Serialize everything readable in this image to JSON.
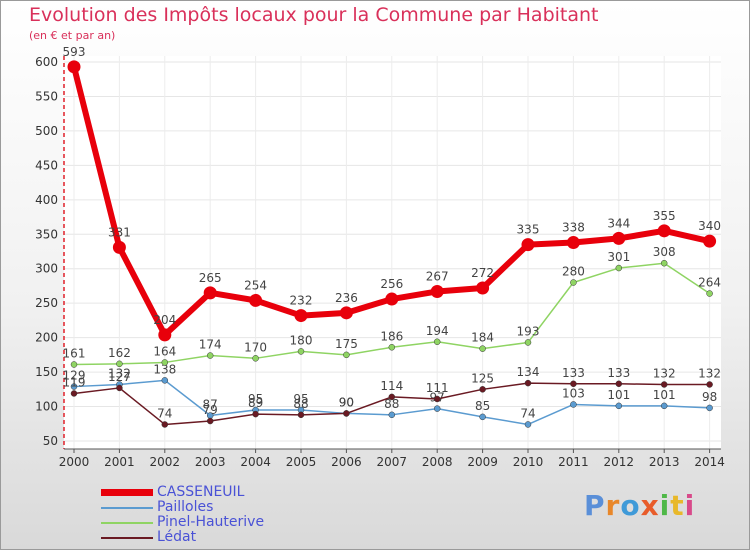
{
  "chart_data": {
    "type": "line",
    "title": "Evolution des Impôts locaux pour la Commune par Habitant",
    "subtitle": "(en € et par an)",
    "xlabel": "",
    "ylabel": "",
    "ylim": [
      50,
      600
    ],
    "yticks": [
      50,
      100,
      150,
      200,
      250,
      300,
      350,
      400,
      450,
      500,
      550,
      600
    ],
    "categories": [
      "2000",
      "2001",
      "2002",
      "2003",
      "2004",
      "2005",
      "2006",
      "2007",
      "2008",
      "2009",
      "2010",
      "2011",
      "2012",
      "2013",
      "2014"
    ],
    "series": [
      {
        "name": "CASSENEUIL",
        "color": "#e8000b",
        "values": [
          593,
          331,
          204,
          265,
          254,
          232,
          236,
          256,
          267,
          272,
          335,
          338,
          344,
          355,
          340
        ],
        "labels": [
          "593",
          "331",
          "204",
          "265",
          "254",
          "232",
          "236",
          "256",
          "267",
          "272",
          "335",
          "338",
          "344",
          "355",
          "340"
        ]
      },
      {
        "name": "Pailloles",
        "color": "#5b9bd0",
        "values": [
          129,
          132,
          138,
          87,
          95,
          95,
          90,
          88,
          97,
          85,
          74,
          103,
          101,
          101,
          98
        ],
        "labels": [
          "129",
          "132",
          "138",
          "87",
          "95",
          "95",
          "90",
          "88",
          "97",
          "85",
          "74",
          "103",
          "101",
          "101",
          "98"
        ]
      },
      {
        "name": "Pinel-Hauterive",
        "color": "#8fd463",
        "values": [
          161,
          162,
          164,
          174,
          170,
          180,
          175,
          186,
          194,
          184,
          193,
          280,
          301,
          308,
          264
        ],
        "labels": [
          "161",
          "162",
          "164",
          "174",
          "170",
          "180",
          "175",
          "186",
          "194",
          "184",
          "193",
          "280",
          "301",
          "308",
          "264"
        ]
      },
      {
        "name": "Lédat",
        "color": "#6a1a23",
        "values": [
          119,
          127,
          74,
          79,
          89,
          88,
          90,
          114,
          111,
          125,
          134,
          133,
          133,
          132,
          132
        ],
        "labels": [
          "119",
          "127",
          "74",
          "79",
          "89",
          "88",
          "90",
          "114",
          "111",
          "125",
          "134",
          "133",
          "133",
          "132",
          "132"
        ]
      }
    ]
  },
  "logo": {
    "text": "Proxiti",
    "colors": [
      "#5a8fd8",
      "#e8872a",
      "#3f9ad8",
      "#e85c2a",
      "#4fb848",
      "#e8b82a",
      "#d84a8a"
    ]
  }
}
